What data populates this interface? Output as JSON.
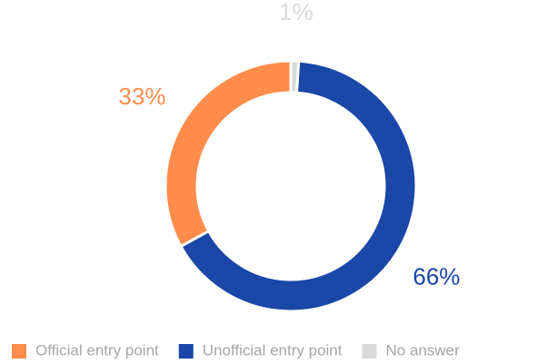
{
  "chart_data": {
    "type": "pie",
    "categories": [
      "Official entry point",
      "Unofficial entry point",
      "No answer"
    ],
    "values": [
      33,
      66,
      1
    ],
    "value_labels": [
      "33%",
      "66%",
      "1%"
    ],
    "colors": [
      "#ff8c4a",
      "#1a47a8",
      "#d9d9d9"
    ],
    "legend": "bottom"
  }
}
